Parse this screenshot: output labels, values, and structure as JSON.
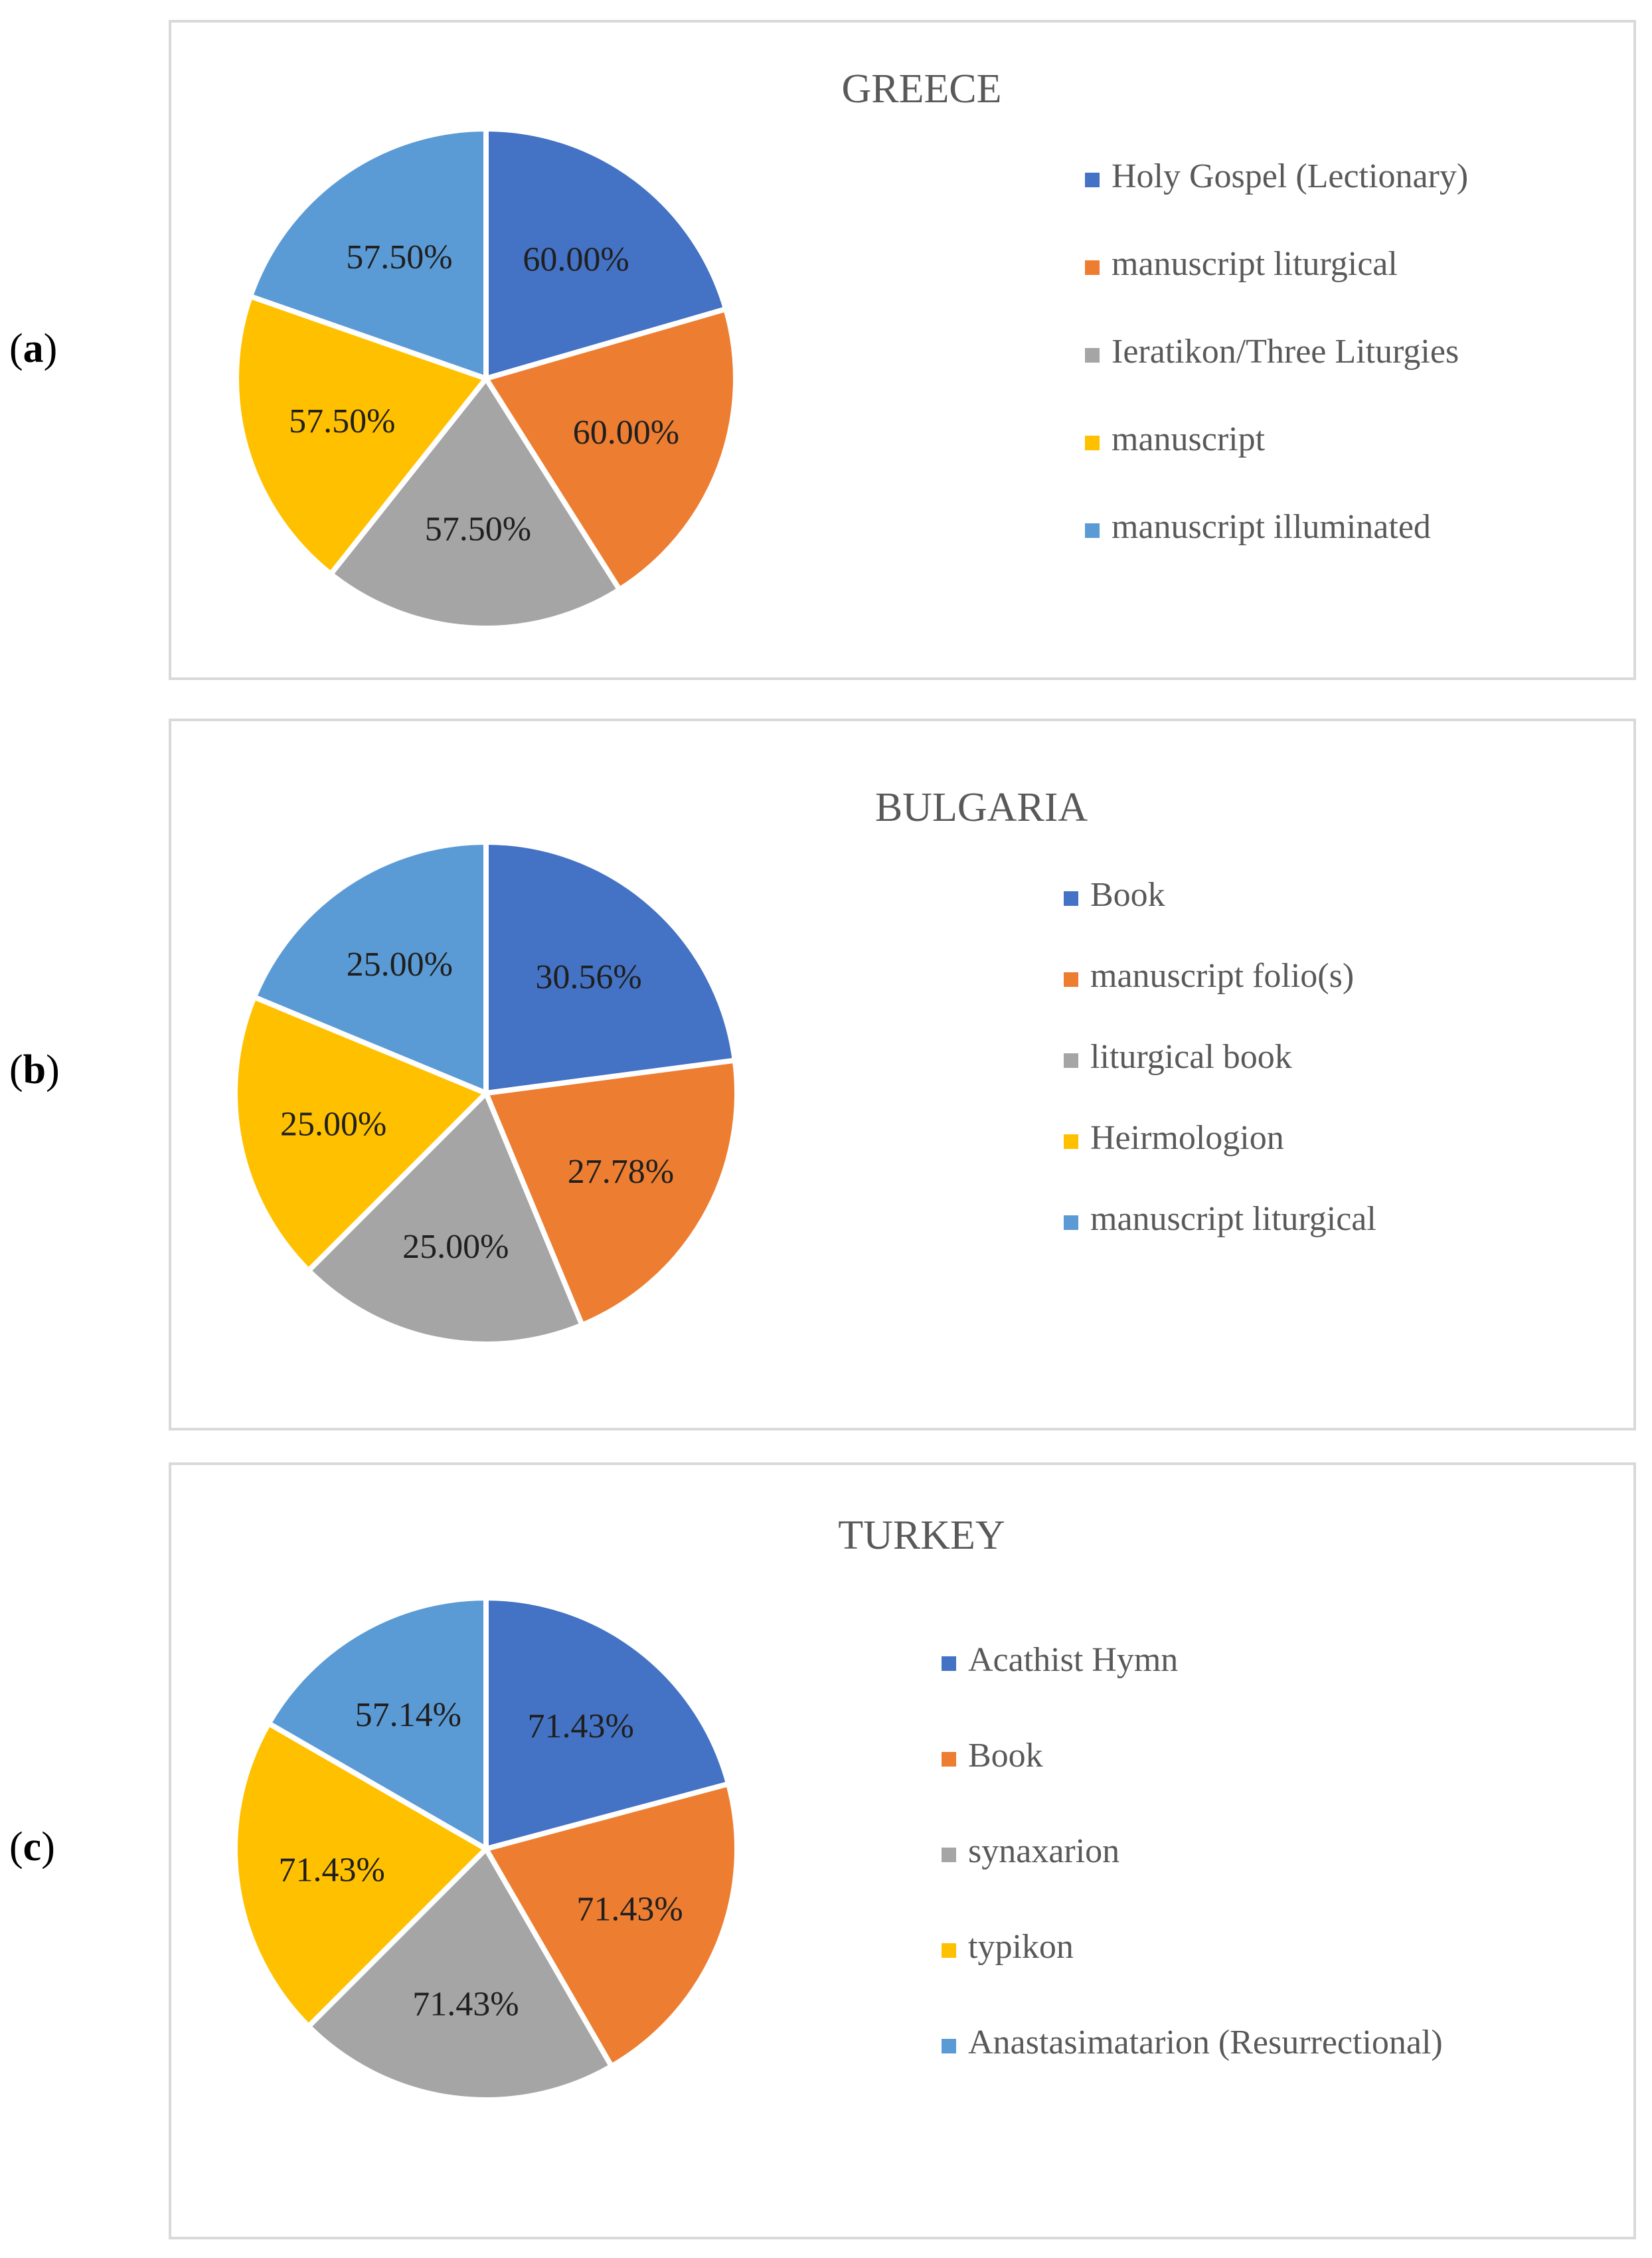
{
  "panel_labels": [
    "a",
    "b",
    "c"
  ],
  "chart_data": [
    {
      "type": "pie",
      "title": "GREECE",
      "categories": [
        "Holy Gospel (Lectionary)",
        "manuscript liturgical",
        "Ieratikon/Three Liturgies",
        "manuscript",
        "manuscript illuminated"
      ],
      "values": [
        60.0,
        60.0,
        57.5,
        57.5,
        57.5
      ],
      "data_labels": [
        "60.00%",
        "60.00%",
        "57.50%",
        "57.50%",
        "57.50%"
      ],
      "colors": [
        "#4472c4",
        "#ed7d31",
        "#a5a5a5",
        "#ffc000",
        "#5b9bd5"
      ],
      "legend_position": "right"
    },
    {
      "type": "pie",
      "title": "BULGARIA",
      "categories": [
        "Book",
        "manuscript folio(s)",
        "liturgical book",
        "Heirmologion",
        "manuscript liturgical"
      ],
      "values": [
        30.56,
        27.78,
        25.0,
        25.0,
        25.0
      ],
      "data_labels": [
        "30.56%",
        "27.78%",
        "25.00%",
        "25.00%",
        "25.00%"
      ],
      "colors": [
        "#4472c4",
        "#ed7d31",
        "#a5a5a5",
        "#ffc000",
        "#5b9bd5"
      ],
      "legend_position": "right"
    },
    {
      "type": "pie",
      "title": "TURKEY",
      "categories": [
        "Acathist Hymn",
        "Book",
        "synaxarion",
        "typikon",
        "Anastasimatarion (Resurrectional)"
      ],
      "values": [
        71.43,
        71.43,
        71.43,
        71.43,
        57.14
      ],
      "data_labels": [
        "71.43%",
        "71.43%",
        "71.43%",
        "71.43%",
        "57.14%"
      ],
      "colors": [
        "#4472c4",
        "#ed7d31",
        "#a5a5a5",
        "#ffc000",
        "#5b9bd5"
      ],
      "legend_position": "right"
    }
  ]
}
